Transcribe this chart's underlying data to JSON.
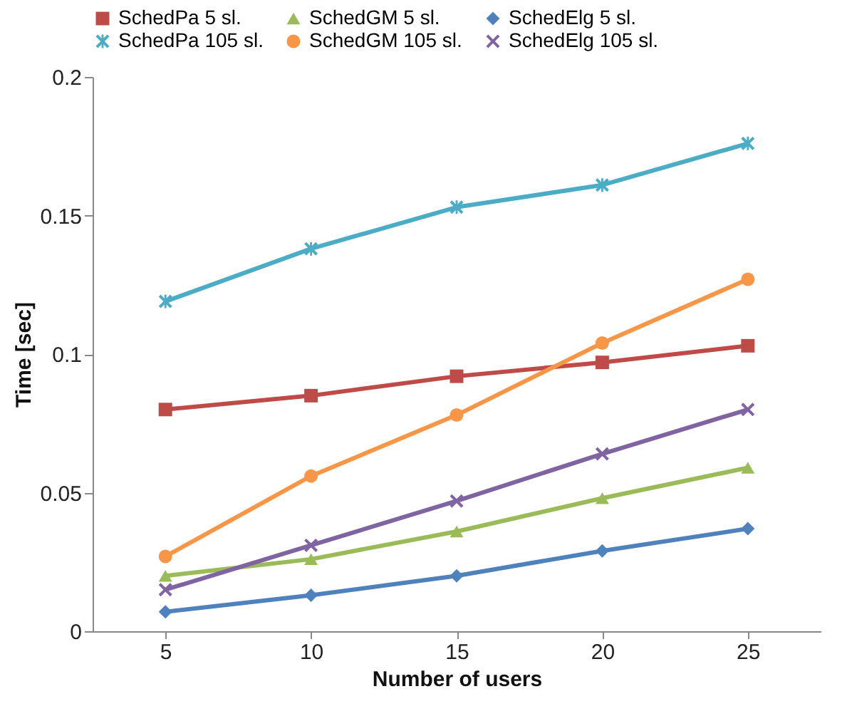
{
  "chart_data": {
    "type": "line",
    "xlabel": "Number of users",
    "ylabel": "Time [sec]",
    "categories": [
      "5",
      "10",
      "15",
      "20",
      "25"
    ],
    "ylim": [
      0,
      0.2
    ],
    "yticks": [
      0,
      0.05,
      0.1,
      0.15,
      0.2
    ],
    "grid": false,
    "legend": "top",
    "series": [
      {
        "name": "SchedPa 5 sl.",
        "color": "#be4b48",
        "marker": "square",
        "values": [
          0.08,
          0.085,
          0.092,
          0.097,
          0.103
        ]
      },
      {
        "name": "SchedGM 5 sl.",
        "color": "#9bbb59",
        "marker": "triangle",
        "values": [
          0.02,
          0.026,
          0.036,
          0.048,
          0.059
        ]
      },
      {
        "name": "SchedElg 5 sl.",
        "color": "#4f81bd",
        "marker": "diamond",
        "values": [
          0.007,
          0.013,
          0.02,
          0.029,
          0.037
        ]
      },
      {
        "name": "SchedPa 105 sl.",
        "color": "#4bacc6",
        "marker": "star",
        "values": [
          0.119,
          0.138,
          0.153,
          0.161,
          0.176
        ]
      },
      {
        "name": "SchedGM 105 sl.",
        "color": "#f79646",
        "marker": "circle",
        "values": [
          0.027,
          0.056,
          0.078,
          0.104,
          0.127
        ]
      },
      {
        "name": "SchedElg 105 sl.",
        "color": "#8064a2",
        "marker": "cross",
        "values": [
          0.015,
          0.031,
          0.047,
          0.064,
          0.08
        ]
      }
    ]
  }
}
